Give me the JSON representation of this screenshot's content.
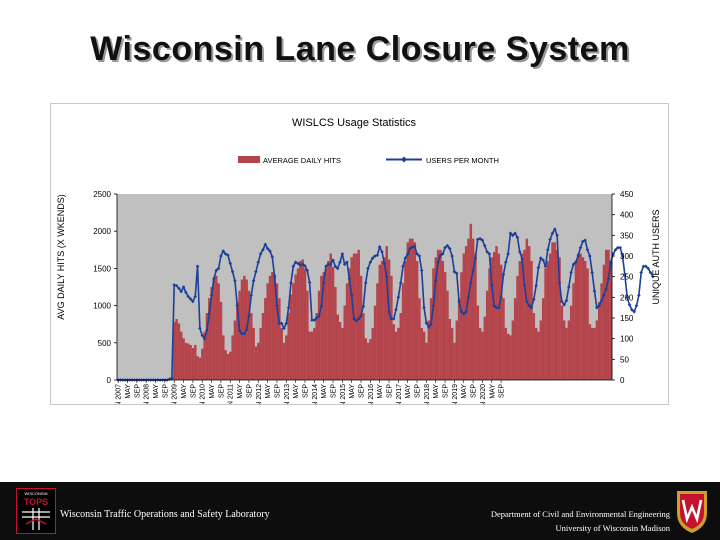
{
  "slide": {
    "title": "Wisconsin Lane Closure System"
  },
  "footer": {
    "lab_name": "Wisconsin Traffic Operations and Safety Laboratory",
    "dept_line1": "Department of Civil and Environmental Engineering",
    "dept_line2": "University of Wisconsin Madison",
    "logo_text": "TOPS",
    "logo_small_text": "WISCONSIN"
  },
  "colors": {
    "bar": "#b5454d",
    "line": "#1c3f97",
    "plot_bg": "#c0c0c0",
    "footer_bg": "#0d0d0d",
    "crest_red": "#c4122f"
  },
  "chart_data": {
    "type": "bar+line",
    "title": "WISLCS Usage Statistics",
    "ylabel": "AVG DAILY HITS (X WKENDS)",
    "y2label": "UNIQUE AUTH USERS",
    "ylim": [
      0,
      2500
    ],
    "y2lim": [
      0,
      450
    ],
    "yticks": [
      "0",
      "500",
      "1000",
      "1500",
      "2000",
      "2500"
    ],
    "y2ticks": [
      "0",
      "50",
      "100",
      "150",
      "200",
      "250",
      "300",
      "350",
      "400",
      "450"
    ],
    "legend_position": "top",
    "grid": false,
    "xticklabels": [
      "JAN 2007",
      "MAY",
      "SEP",
      "JAN 2008",
      "MAY",
      "SEP",
      "JAN 2009",
      "MAY",
      "SEP",
      "JAN 2010",
      "MAY",
      "SEP",
      "JAN 2011",
      "MAY",
      "SEP",
      "JAN 2012",
      "MAY",
      "SEP",
      "JAN 2013",
      "MAY",
      "SEP",
      "JAN 2014",
      "MAY",
      "SEP",
      "JAN 2015",
      "MAY",
      "SEP",
      "JAN 2016",
      "MAY",
      "SEP",
      "JAN 2017",
      "MAY",
      "SEP",
      "JAN 2018",
      "MAY",
      "SEP",
      "JAN 2019",
      "MAY",
      "SEP",
      "JAN 2020",
      "MAY",
      "SEP"
    ],
    "series": [
      {
        "name": "AVERAGE DAILY HITS",
        "type": "bar",
        "axis": "left",
        "values": [
          0,
          0,
          0,
          0,
          0,
          0,
          0,
          0,
          0,
          0,
          0,
          0,
          0,
          0,
          0,
          0,
          0,
          0,
          0,
          0,
          0,
          0,
          10,
          20,
          780,
          820,
          760,
          650,
          560,
          500,
          490,
          470,
          430,
          470,
          320,
          300,
          420,
          650,
          900,
          1100,
          1250,
          1350,
          1400,
          1300,
          1050,
          600,
          400,
          350,
          380,
          600,
          800,
          1050,
          1200,
          1350,
          1400,
          1350,
          1200,
          900,
          700,
          450,
          500,
          700,
          900,
          1100,
          1300,
          1400,
          1450,
          1420,
          1300,
          1100,
          700,
          500,
          600,
          900,
          1150,
          1300,
          1420,
          1500,
          1600,
          1620,
          1500,
          1200,
          650,
          650,
          700,
          900,
          1200,
          1400,
          1450,
          1500,
          1600,
          1700,
          1520,
          1250,
          880,
          780,
          700,
          1000,
          1300,
          1500,
          1650,
          1700,
          1700,
          1750,
          1400,
          900,
          560,
          500,
          550,
          700,
          1000,
          1300,
          1550,
          1600,
          1650,
          1800,
          1620,
          1400,
          750,
          650,
          700,
          900,
          1300,
          1600,
          1850,
          1900,
          1900,
          1850,
          1600,
          1100,
          700,
          650,
          500,
          800,
          1100,
          1500,
          1650,
          1750,
          1750,
          1600,
          1450,
          1200,
          820,
          700,
          500,
          800,
          1100,
          1450,
          1700,
          1800,
          1900,
          2100,
          1900,
          1700,
          1000,
          700,
          650,
          850,
          1200,
          1500,
          1650,
          1720,
          1800,
          1700,
          1550,
          1100,
          700,
          620,
          600,
          800,
          1100,
          1400,
          1600,
          1700,
          1750,
          1900,
          1800,
          1600,
          900,
          700,
          650,
          800,
          1100,
          1500,
          1600,
          1700,
          1850,
          1850,
          1750,
          1650,
          1000,
          800,
          700,
          800,
          1000,
          1300,
          1600,
          1700,
          1700,
          1650,
          1600,
          1500,
          750,
          700,
          700,
          800,
          1050,
          1300,
          1550,
          1750,
          1750,
          1600
        ]
      },
      {
        "name": "USERS PER MONTH",
        "type": "line",
        "axis": "right",
        "values": [
          0,
          0,
          0,
          0,
          0,
          0,
          0,
          0,
          0,
          0,
          0,
          0,
          0,
          0,
          0,
          0,
          0,
          0,
          0,
          0,
          0,
          0,
          2,
          5,
          230,
          228,
          222,
          214,
          225,
          212,
          202,
          196,
          190,
          202,
          275,
          125,
          108,
          100,
          120,
          160,
          205,
          245,
          265,
          270,
          300,
          312,
          305,
          302,
          282,
          262,
          240,
          180,
          120,
          112,
          112,
          122,
          155,
          205,
          240,
          262,
          285,
          305,
          315,
          328,
          318,
          312,
          298,
          250,
          180,
          137,
          137,
          125,
          137,
          175,
          235,
          275,
          285,
          282,
          278,
          280,
          276,
          265,
          236,
          145,
          145,
          150,
          155,
          178,
          235,
          275,
          280,
          280,
          290,
          275,
          270,
          285,
          305,
          280,
          285,
          245,
          205,
          148,
          143,
          148,
          155,
          178,
          235,
          270,
          285,
          295,
          300,
          302,
          322,
          310,
          282,
          250,
          165,
          148,
          148,
          170,
          200,
          235,
          275,
          295,
          305,
          318,
          322,
          323,
          305,
          300,
          265,
          175,
          138,
          128,
          135,
          180,
          240,
          285,
          302,
          305,
          320,
          325,
          318,
          300,
          262,
          258,
          190,
          165,
          160,
          165,
          200,
          235,
          265,
          295,
          340,
          342,
          338,
          325,
          310,
          305,
          230,
          180,
          175,
          175,
          200,
          255,
          285,
          305,
          355,
          350,
          355,
          345,
          310,
          293,
          230,
          190,
          180,
          175,
          195,
          228,
          272,
          295,
          290,
          275,
          315,
          340,
          355,
          365,
          350,
          235,
          190,
          182,
          192,
          225,
          260,
          280,
          285,
          300,
          320,
          335,
          338,
          315,
          300,
          260,
          215,
          175,
          180,
          192,
          205,
          220,
          245,
          285,
          305,
          315,
          320,
          320,
          300,
          255,
          200,
          182,
          170,
          165,
          180,
          205,
          260,
          275,
          275,
          270,
          260,
          250
        ]
      }
    ]
  }
}
